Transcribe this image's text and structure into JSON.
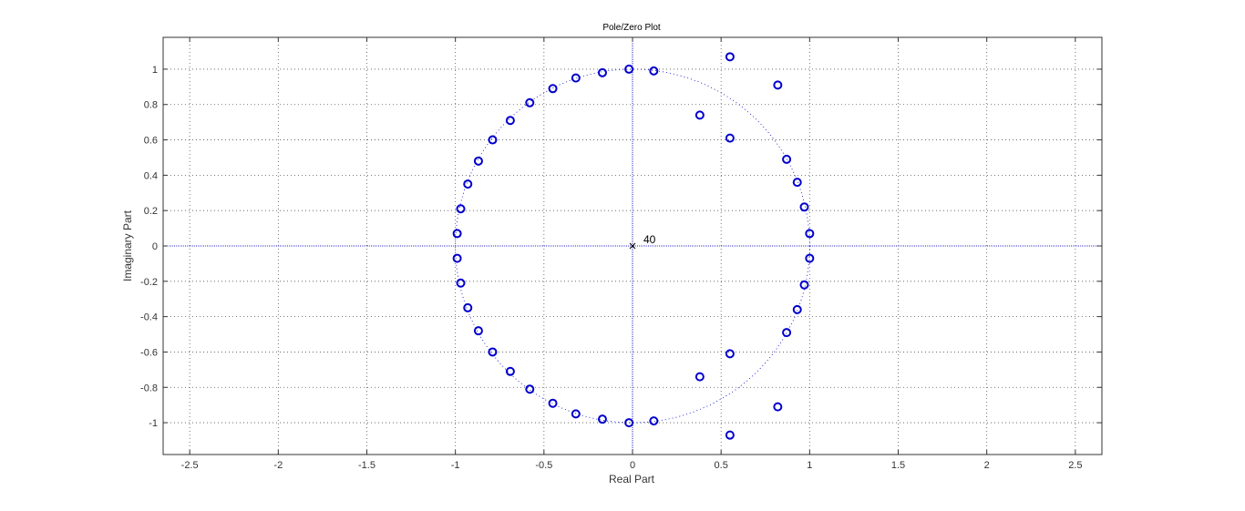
{
  "chart_data": {
    "type": "scatter",
    "title": "Pole/Zero Plot",
    "xlabel": "Real Part",
    "ylabel": "Imaginary Part",
    "xlim": [
      -2.65,
      2.65
    ],
    "ylim": [
      -1.18,
      1.18
    ],
    "xticks": [
      -2.5,
      -2,
      -1.5,
      -1,
      -0.5,
      0,
      0.5,
      1,
      1.5,
      2,
      2.5
    ],
    "yticks": [
      -1,
      -0.8,
      -0.6,
      -0.4,
      -0.2,
      0,
      0.2,
      0.4,
      0.6,
      0.8,
      1
    ],
    "grid": true,
    "unit_circle": true,
    "zero_color": "#0000cc",
    "pole_color": "#000000",
    "zeros": [
      [
        -0.99,
        0.07
      ],
      [
        -0.99,
        -0.07
      ],
      [
        -0.97,
        0.21
      ],
      [
        -0.97,
        -0.21
      ],
      [
        -0.93,
        0.35
      ],
      [
        -0.93,
        -0.35
      ],
      [
        -0.87,
        0.48
      ],
      [
        -0.87,
        -0.48
      ],
      [
        -0.79,
        0.6
      ],
      [
        -0.79,
        -0.6
      ],
      [
        -0.69,
        0.71
      ],
      [
        -0.69,
        -0.71
      ],
      [
        -0.58,
        0.81
      ],
      [
        -0.58,
        -0.81
      ],
      [
        -0.45,
        0.89
      ],
      [
        -0.45,
        -0.89
      ],
      [
        -0.32,
        0.95
      ],
      [
        -0.32,
        -0.95
      ],
      [
        -0.17,
        0.98
      ],
      [
        -0.17,
        -0.98
      ],
      [
        -0.02,
        1.0
      ],
      [
        -0.02,
        -1.0
      ],
      [
        0.12,
        0.99
      ],
      [
        0.12,
        -0.99
      ],
      [
        0.38,
        0.74
      ],
      [
        0.38,
        -0.74
      ],
      [
        0.55,
        1.07
      ],
      [
        0.55,
        -1.07
      ],
      [
        0.55,
        0.61
      ],
      [
        0.55,
        -0.61
      ],
      [
        0.82,
        0.91
      ],
      [
        0.82,
        -0.91
      ],
      [
        0.87,
        0.49
      ],
      [
        0.87,
        -0.49
      ],
      [
        0.93,
        0.36
      ],
      [
        0.93,
        -0.36
      ],
      [
        0.97,
        0.22
      ],
      [
        0.97,
        -0.22
      ],
      [
        1.0,
        0.07
      ],
      [
        1.0,
        -0.07
      ]
    ],
    "poles": [
      {
        "x": 0,
        "y": 0,
        "multiplicity_label": "40"
      }
    ]
  }
}
